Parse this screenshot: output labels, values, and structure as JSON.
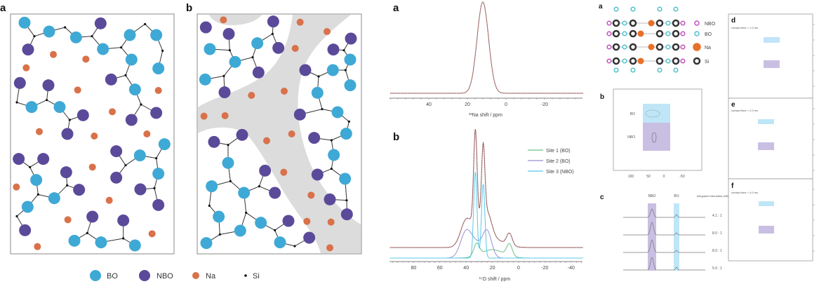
{
  "structure_figure": {
    "panel_a_label": "a",
    "panel_b_label": "b",
    "legend": [
      {
        "label": "BO",
        "color": "#3fa9d6"
      },
      {
        "label": "NBO",
        "color": "#5b4a9a"
      },
      {
        "label": "Na",
        "color": "#d9714a"
      },
      {
        "label": "Si",
        "color": "#111111"
      }
    ],
    "channel_color": "#dcdcdc"
  },
  "chart_data": [
    {
      "type": "line",
      "panel_label": "a",
      "xlabel": "²³Na shift / ppm",
      "xlim": [
        60,
        -40
      ],
      "x_ticks": [
        "40",
        "20",
        "0",
        "-20"
      ],
      "series": [
        {
          "color": "#a0504f",
          "peaks": [
            {
              "center": 12,
              "height": 1.0,
              "fwhm": 7
            }
          ]
        }
      ]
    },
    {
      "type": "line",
      "panel_label": "b",
      "xlabel": "¹⁷O shift / ppm",
      "xlim": [
        98,
        -49
      ],
      "x_ticks": [
        "80",
        "60",
        "40",
        "20",
        "0",
        "-20",
        "-40"
      ],
      "legend_position": "top-right",
      "series": [
        {
          "name": "Site 1 (BO)",
          "color": "#6cc08b",
          "peaks": [
            {
              "center": 32,
              "height": 0.1,
              "fwhm": 5
            },
            {
              "center": 7,
              "height": 0.1,
              "fwhm": 5
            },
            {
              "center": 20,
              "height": 0.07,
              "fwhm": 20
            }
          ]
        },
        {
          "name": "Site 2 (BO)",
          "color": "#9b8fd0",
          "peaks": [
            {
              "center": 40,
              "height": 0.22,
              "fwhm": 10
            },
            {
              "center": 24,
              "height": 0.22,
              "fwhm": 8
            },
            {
              "center": 32,
              "height": 0.1,
              "fwhm": 10
            }
          ]
        },
        {
          "name": "Site 3 (NBO)",
          "color": "#5bc8e8",
          "peaks": [
            {
              "center": 33,
              "height": 0.72,
              "fwhm": 3
            },
            {
              "center": 27,
              "height": 0.62,
              "fwhm": 3
            }
          ]
        },
        {
          "color": "#a0504f",
          "is_total": true
        }
      ]
    }
  ],
  "nmr_figure": {
    "panel_a": {
      "label": "a",
      "legend": [
        {
          "label": "NBO",
          "color": "#c04fc0"
        },
        {
          "label": "BO",
          "color": "#4fc0c8"
        },
        {
          "label": "Na",
          "color": "#e8702a"
        },
        {
          "label": "Si",
          "color": "#333333"
        }
      ]
    },
    "panel_b": {
      "label": "b",
      "site_labels": [
        "BO",
        "NBO"
      ],
      "x_ticks": [
        "100",
        "50",
        "0",
        "-50"
      ]
    },
    "panel_c": {
      "label": "c",
      "band_labels": [
        "NBO",
        "BO"
      ],
      "header": "Integrated intensities (NBO : BO)",
      "ratios": [
        "4.1 : 1",
        "8.0 : 1",
        "8.0 : 1",
        "5.0 : 1"
      ]
    },
    "panels_def": [
      {
        "label": "d",
        "caption": "contact time = 1.0 ms"
      },
      {
        "label": "e",
        "caption": "contact time = 2.0 ms"
      },
      {
        "label": "f",
        "caption": "contact time = 4.0 ms"
      }
    ],
    "bo_color": "#bfe6f7",
    "nbo_color": "#c9bfe3"
  }
}
